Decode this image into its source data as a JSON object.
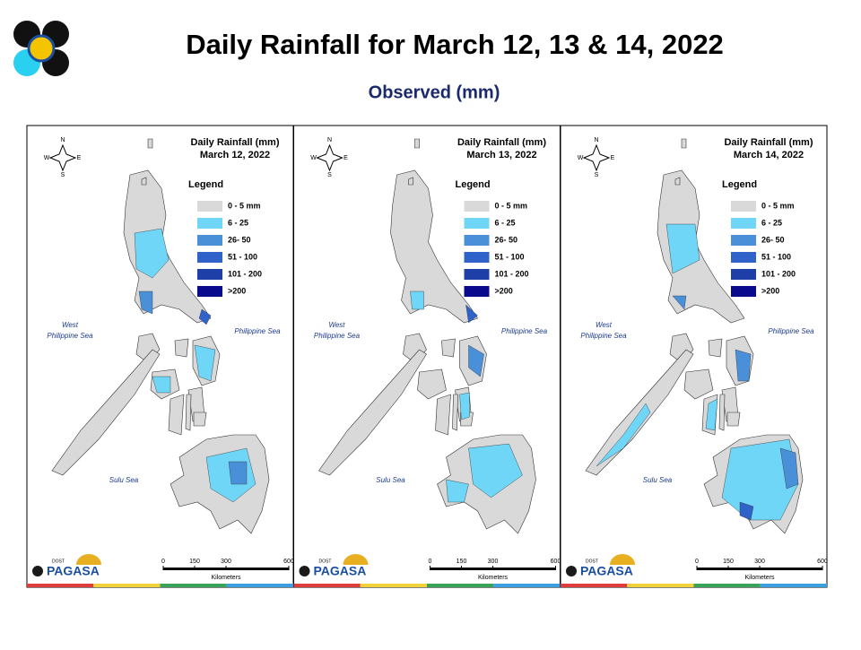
{
  "header": {
    "title": "Daily Rainfall for March 12, 13 & 14, 2022",
    "subtitle": "Observed (mm)"
  },
  "panels": [
    {
      "heading": [
        "Daily Rainfall (mm)",
        "March 12, 2022"
      ]
    },
    {
      "heading": [
        "Daily Rainfall (mm)",
        "March 13, 2022"
      ]
    },
    {
      "heading": [
        "Daily Rainfall (mm)",
        "March 14, 2022"
      ]
    }
  ],
  "legend": {
    "title": "Legend",
    "items": [
      {
        "label": "0 - 5 mm",
        "color": "#d9d9d9"
      },
      {
        "label": "6 - 25",
        "color": "#6fd6f7"
      },
      {
        "label": "26- 50",
        "color": "#4a90d9"
      },
      {
        "label": "51 - 100",
        "color": "#2f63c9"
      },
      {
        "label": "101 - 200",
        "color": "#1f3fa8"
      },
      {
        "label": ">200",
        "color": "#0a0a8c"
      }
    ]
  },
  "compass": [
    "N",
    "W",
    "E",
    "S"
  ],
  "seas": {
    "west": [
      "West",
      "Philippine Sea"
    ],
    "east": "Philippine Sea",
    "sulu": "Sulu Sea"
  },
  "scale": {
    "ticks": [
      0,
      150,
      300,
      600
    ],
    "unit": "Kilometers"
  },
  "logo": {
    "top": "DOST",
    "name": "PAGASA"
  }
}
